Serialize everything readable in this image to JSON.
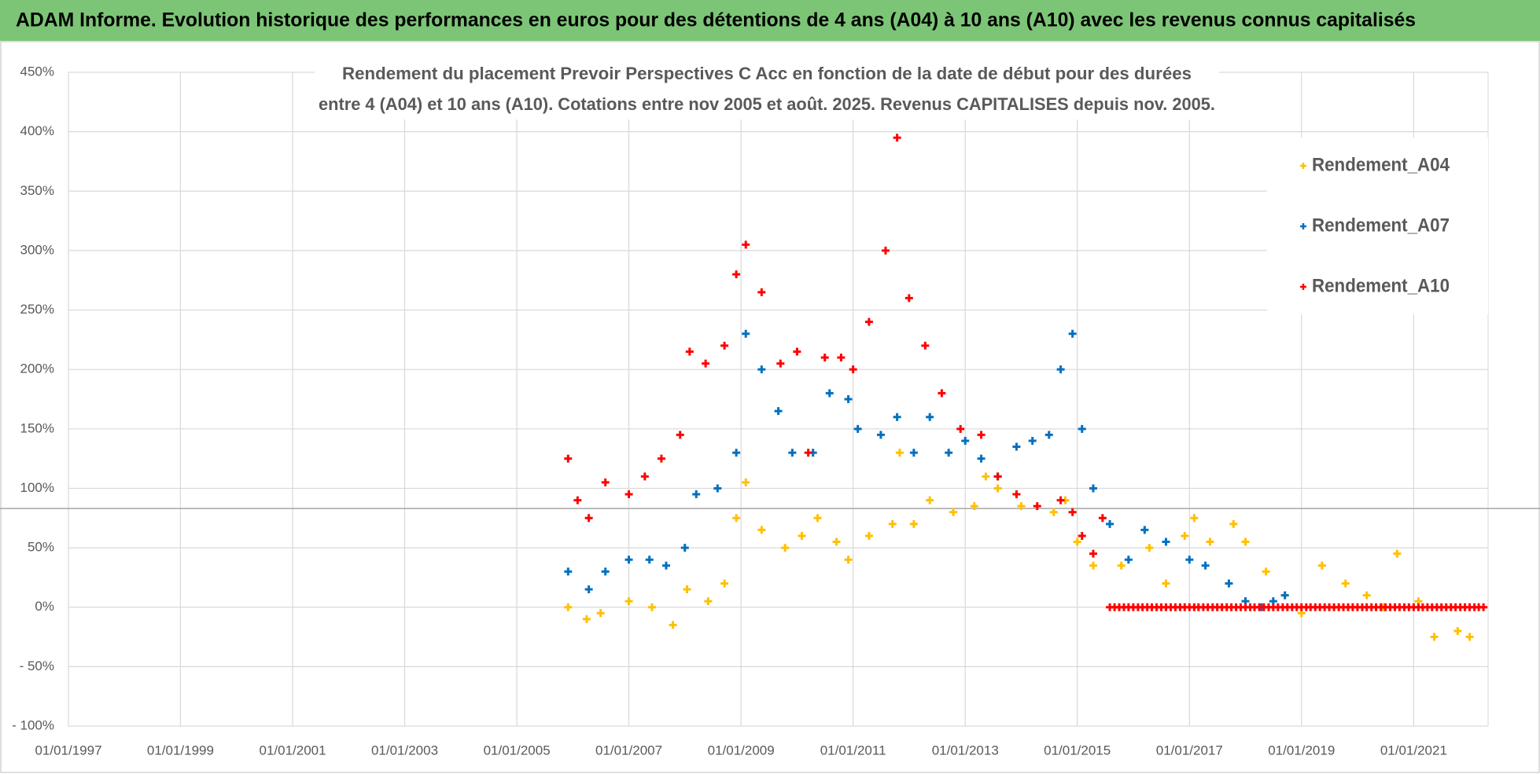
{
  "header": {
    "title": "ADAM Informe. Evolution historique des performances en euros pour des détentions de 4 ans (A04) à 10 ans (A10) avec les revenus connus capitalisés"
  },
  "chart_data": {
    "type": "scatter",
    "title": [
      "Rendement du placement Prevoir Perspectives C Acc en fonction de la date de début pour des durées",
      "entre 4 (A04) et 10 ans (A10). Cotations entre nov 2005 et août. 2025. Revenus CAPITALISES depuis nov. 2005."
    ],
    "xlim": [
      "1997-01-01",
      "2022-05-01"
    ],
    "xticks": [
      {
        "value": "1997-01-01",
        "label": "01/01/1997"
      },
      {
        "value": "1999-01-01",
        "label": "01/01/1999"
      },
      {
        "value": "2001-01-01",
        "label": "01/01/2001"
      },
      {
        "value": "2003-01-01",
        "label": "01/01/2003"
      },
      {
        "value": "2005-01-01",
        "label": "01/01/2005"
      },
      {
        "value": "2007-01-01",
        "label": "01/01/2007"
      },
      {
        "value": "2009-01-01",
        "label": "01/01/2009"
      },
      {
        "value": "2011-01-01",
        "label": "01/01/2011"
      },
      {
        "value": "2013-01-01",
        "label": "01/01/2013"
      },
      {
        "value": "2015-01-01",
        "label": "01/01/2015"
      },
      {
        "value": "2017-01-01",
        "label": "01/01/2017"
      },
      {
        "value": "2019-01-01",
        "label": "01/01/2019"
      },
      {
        "value": "2021-01-01",
        "label": "01/01/2021"
      }
    ],
    "ylim": [
      -100,
      450
    ],
    "yticks": [
      {
        "value": -100,
        "label": "- 100%"
      },
      {
        "value": -50,
        "label": "- 50%"
      },
      {
        "value": 0,
        "label": "0%"
      },
      {
        "value": 50,
        "label": "50%"
      },
      {
        "value": 100,
        "label": "100%"
      },
      {
        "value": 150,
        "label": "150%"
      },
      {
        "value": 200,
        "label": "200%"
      },
      {
        "value": 250,
        "label": "250%"
      },
      {
        "value": 300,
        "label": "300%"
      },
      {
        "value": 350,
        "label": "350%"
      },
      {
        "value": 400,
        "label": "400%"
      },
      {
        "value": 450,
        "label": "450%"
      }
    ],
    "grid": true,
    "hline": 83,
    "legend": "right",
    "series": [
      {
        "name": "Rendement_A04",
        "color": "#ffc000",
        "x": [
          "2005-12-01",
          "2006-04-01",
          "2006-07-01",
          "2007-01-01",
          "2007-06-01",
          "2007-10-15",
          "2008-01-15",
          "2008-06-01",
          "2008-09-15",
          "2008-12-01",
          "2009-02-01",
          "2009-05-15",
          "2009-10-15",
          "2010-02-01",
          "2010-05-15",
          "2010-09-15",
          "2010-12-01",
          "2011-04-15",
          "2011-09-15",
          "2011-11-01",
          "2012-02-01",
          "2012-05-15",
          "2012-10-15",
          "2013-03-01",
          "2013-05-15",
          "2013-08-01",
          "2014-01-01",
          "2014-08-01",
          "2014-10-15",
          "2015-01-01",
          "2015-04-15",
          "2015-10-15",
          "2016-04-15",
          "2016-08-01",
          "2016-12-01",
          "2017-02-01",
          "2017-05-15",
          "2017-10-15",
          "2018-01-01",
          "2018-05-15",
          "2018-09-15",
          "2019-01-01",
          "2019-05-15",
          "2019-10-15",
          "2020-03-01",
          "2020-06-15",
          "2020-09-15",
          "2021-02-01",
          "2021-05-15",
          "2021-10-15",
          "2022-01-01"
        ],
        "values": [
          0,
          -10,
          -5,
          5,
          0,
          -15,
          15,
          5,
          20,
          75,
          105,
          65,
          50,
          60,
          75,
          55,
          40,
          60,
          70,
          130,
          70,
          90,
          80,
          85,
          110,
          100,
          85,
          80,
          90,
          55,
          35,
          35,
          50,
          20,
          60,
          75,
          55,
          70,
          55,
          30,
          10,
          -5,
          35,
          20,
          10,
          0,
          45,
          5,
          -25,
          -20,
          -25
        ]
      },
      {
        "name": "Rendement_A07",
        "color": "#0070c0",
        "x": [
          "2005-12-01",
          "2006-04-15",
          "2006-08-01",
          "2007-01-01",
          "2007-05-15",
          "2007-09-01",
          "2008-01-01",
          "2008-03-15",
          "2008-08-01",
          "2008-12-01",
          "2009-02-01",
          "2009-05-15",
          "2009-09-01",
          "2009-12-01",
          "2010-04-15",
          "2010-08-01",
          "2010-12-01",
          "2011-02-01",
          "2011-07-01",
          "2011-10-15",
          "2012-02-01",
          "2012-05-15",
          "2012-09-15",
          "2013-01-01",
          "2013-04-15",
          "2013-08-01",
          "2013-12-01",
          "2014-03-15",
          "2014-07-01",
          "2014-09-15",
          "2014-12-01",
          "2015-02-01",
          "2015-04-15",
          "2015-08-01",
          "2015-12-01",
          "2016-03-15",
          "2016-08-01",
          "2017-01-01",
          "2017-04-15",
          "2017-09-15",
          "2018-01-01",
          "2018-04-15",
          "2018-07-01",
          "2018-09-15"
        ],
        "values": [
          30,
          15,
          30,
          40,
          40,
          35,
          50,
          95,
          100,
          130,
          230,
          200,
          165,
          130,
          130,
          180,
          175,
          150,
          145,
          160,
          130,
          160,
          130,
          140,
          125,
          110,
          135,
          140,
          145,
          200,
          230,
          150,
          100,
          70,
          40,
          65,
          55,
          40,
          35,
          20,
          5,
          0,
          5,
          10
        ]
      },
      {
        "name": "Rendement_A10",
        "color": "#ff0000",
        "x": [
          "2005-12-01",
          "2006-02-01",
          "2006-04-15",
          "2006-08-01",
          "2007-01-01",
          "2007-04-15",
          "2007-08-01",
          "2007-12-01",
          "2008-02-01",
          "2008-05-15",
          "2008-09-15",
          "2008-12-01",
          "2009-02-01",
          "2009-05-15",
          "2009-09-15",
          "2010-01-01",
          "2010-03-15",
          "2010-07-01",
          "2010-10-15",
          "2011-01-01",
          "2011-04-15",
          "2011-08-01",
          "2011-10-15",
          "2012-01-01",
          "2012-04-15",
          "2012-08-01",
          "2012-12-01",
          "2013-04-15",
          "2013-08-01",
          "2013-12-01",
          "2014-04-15",
          "2014-09-15",
          "2014-12-01",
          "2015-02-01",
          "2015-04-15",
          "2015-06-15",
          "2015-08-01",
          "2015-09-01",
          "2015-10-01",
          "2015-11-01",
          "2015-12-01",
          "2016-01-01",
          "2016-02-01",
          "2016-03-01",
          "2016-04-01",
          "2016-05-01",
          "2016-06-01",
          "2016-07-01",
          "2016-08-01",
          "2016-09-01",
          "2016-10-01",
          "2016-11-01",
          "2016-12-01",
          "2017-01-01",
          "2017-02-01",
          "2017-03-01",
          "2017-04-01",
          "2017-05-01",
          "2017-06-01",
          "2017-07-01",
          "2017-08-01",
          "2017-09-01",
          "2017-10-01",
          "2017-11-01",
          "2017-12-01",
          "2018-01-01",
          "2018-02-01",
          "2018-03-01",
          "2018-04-01",
          "2018-05-01",
          "2018-06-01",
          "2018-07-01",
          "2018-08-01",
          "2018-09-01",
          "2018-10-01",
          "2018-11-01",
          "2018-12-01",
          "2019-01-01",
          "2019-02-01",
          "2019-03-01",
          "2019-04-01",
          "2019-05-01",
          "2019-06-01",
          "2019-07-01",
          "2019-08-01",
          "2019-09-01",
          "2019-10-01",
          "2019-11-01",
          "2019-12-01",
          "2020-01-01",
          "2020-02-01",
          "2020-03-01",
          "2020-04-01",
          "2020-05-01",
          "2020-06-01",
          "2020-07-01",
          "2020-08-01",
          "2020-09-01",
          "2020-10-01",
          "2020-11-01",
          "2020-12-01",
          "2021-01-01",
          "2021-02-01",
          "2021-03-01",
          "2021-04-01",
          "2021-05-01",
          "2021-06-01",
          "2021-07-01",
          "2021-08-01",
          "2021-09-01",
          "2021-10-01",
          "2021-11-01",
          "2021-12-01",
          "2022-01-01",
          "2022-02-01",
          "2022-03-01",
          "2022-04-01"
        ],
        "values": [
          125,
          90,
          75,
          105,
          95,
          110,
          125,
          145,
          215,
          205,
          220,
          280,
          305,
          265,
          205,
          215,
          130,
          210,
          210,
          200,
          240,
          300,
          395,
          260,
          220,
          180,
          150,
          145,
          110,
          95,
          85,
          90,
          80,
          60,
          45,
          75,
          0,
          0,
          0,
          0,
          0,
          0,
          0,
          0,
          0,
          0,
          0,
          0,
          0,
          0,
          0,
          0,
          0,
          0,
          0,
          0,
          0,
          0,
          0,
          0,
          0,
          0,
          0,
          0,
          0,
          0,
          0,
          0,
          0,
          0,
          0,
          0,
          0,
          0,
          0,
          0,
          0,
          0,
          0,
          0,
          0,
          0,
          0,
          0,
          0,
          0,
          0,
          0,
          0,
          0,
          0,
          0,
          0,
          0,
          0,
          0,
          0,
          0,
          0,
          0,
          0,
          0,
          0,
          0,
          0,
          0,
          0,
          0,
          0,
          0,
          0,
          0,
          0,
          0,
          0,
          0,
          0
        ]
      }
    ]
  }
}
